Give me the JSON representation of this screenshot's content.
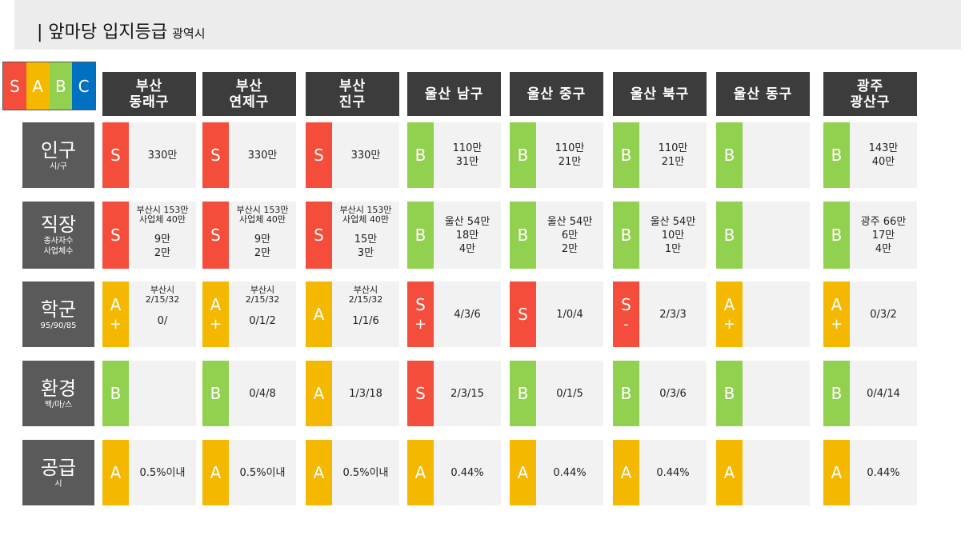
{
  "title": {
    "main": "| 앞마당 입지등급",
    "sub": "광역시"
  },
  "legend": [
    {
      "label": "S",
      "color": "#f44d3c"
    },
    {
      "label": "A",
      "color": "#f5b800"
    },
    {
      "label": "B",
      "color": "#92d050"
    },
    {
      "label": "C",
      "color": "#0070c0"
    }
  ],
  "grade_colors": {
    "S": "#f44d3c",
    "A": "#f5b800",
    "B": "#92d050"
  },
  "columns": [
    {
      "name": "부산\n동래구"
    },
    {
      "name": "부산\n연제구"
    },
    {
      "name": "부산\n진구"
    },
    {
      "name": "울산 남구"
    },
    {
      "name": "울산 중구"
    },
    {
      "name": "울산 북구"
    },
    {
      "name": "울산 동구"
    },
    {
      "name": "광주\n광산구"
    }
  ],
  "rows": [
    {
      "label": "인구",
      "sub": "시/구",
      "cells": [
        {
          "grade": "S",
          "lines": [
            "330만"
          ]
        },
        {
          "grade": "S",
          "lines": [
            "330만"
          ]
        },
        {
          "grade": "S",
          "lines": [
            "330만"
          ]
        },
        {
          "grade": "B",
          "lines": [
            "110만",
            "31만"
          ]
        },
        {
          "grade": "B",
          "lines": [
            "110만",
            "21만"
          ]
        },
        {
          "grade": "B",
          "lines": [
            "110만",
            "21만"
          ]
        },
        {
          "grade": "B",
          "lines": []
        },
        {
          "grade": "B",
          "lines": [
            "143만",
            "40만"
          ]
        }
      ]
    },
    {
      "label": "직장",
      "sub": "종사자수\n사업체수",
      "cells": [
        {
          "grade": "S",
          "small": [
            "부산시 153만",
            "사업체 40만"
          ],
          "lines": [
            "9만",
            "2만"
          ]
        },
        {
          "grade": "S",
          "small": [
            "부산시 153만",
            "사업체 40만"
          ],
          "lines": [
            "9만",
            "2만"
          ]
        },
        {
          "grade": "S",
          "small": [
            "부산시 153만",
            "사업체 40만"
          ],
          "lines": [
            "15만",
            "3만"
          ]
        },
        {
          "grade": "B",
          "lines": [
            "울산 54만",
            "18만",
            "4만"
          ]
        },
        {
          "grade": "B",
          "lines": [
            "울산 54만",
            "6만",
            "2만"
          ]
        },
        {
          "grade": "B",
          "lines": [
            "울산 54만",
            "10만",
            "1만"
          ]
        },
        {
          "grade": "B",
          "lines": []
        },
        {
          "grade": "B",
          "lines": [
            "광주 66만",
            "17만",
            "4만"
          ]
        }
      ]
    },
    {
      "label": "학군",
      "sub": "95/90/85",
      "cells": [
        {
          "grade": "A",
          "mod": "+",
          "small": [
            "부산시",
            "2/15/32"
          ],
          "lines": [
            "0/"
          ]
        },
        {
          "grade": "A",
          "mod": "+",
          "small": [
            "부산시",
            "2/15/32"
          ],
          "lines": [
            "0/1/2"
          ]
        },
        {
          "grade": "A",
          "small": [
            "부산시",
            "2/15/32"
          ],
          "lines": [
            "1/1/6"
          ]
        },
        {
          "grade": "S",
          "mod": "+",
          "lines": [
            "4/3/6"
          ]
        },
        {
          "grade": "S",
          "lines": [
            "1/0/4"
          ]
        },
        {
          "grade": "S",
          "mod": "-",
          "lines": [
            "2/3/3"
          ]
        },
        {
          "grade": "A",
          "mod": "+",
          "lines": []
        },
        {
          "grade": "A",
          "mod": "+",
          "lines": [
            "0/3/2"
          ]
        }
      ]
    },
    {
      "label": "환경",
      "sub": "백/마/스",
      "cells": [
        {
          "grade": "B",
          "lines": []
        },
        {
          "grade": "B",
          "lines": [
            "0/4/8"
          ]
        },
        {
          "grade": "A",
          "lines": [
            "1/3/18"
          ]
        },
        {
          "grade": "S",
          "lines": [
            "2/3/15"
          ]
        },
        {
          "grade": "B",
          "lines": [
            "0/1/5"
          ]
        },
        {
          "grade": "B",
          "lines": [
            "0/3/6"
          ]
        },
        {
          "grade": "B",
          "lines": []
        },
        {
          "grade": "B",
          "lines": [
            "0/4/14"
          ]
        }
      ]
    },
    {
      "label": "공급",
      "sub": "시",
      "cells": [
        {
          "grade": "A",
          "lines": [
            "0.5%이내"
          ]
        },
        {
          "grade": "A",
          "lines": [
            "0.5%이내"
          ]
        },
        {
          "grade": "A",
          "lines": [
            "0.5%이내"
          ]
        },
        {
          "grade": "A",
          "lines": [
            "0.44%"
          ]
        },
        {
          "grade": "A",
          "lines": [
            "0.44%"
          ]
        },
        {
          "grade": "A",
          "lines": [
            "0.44%"
          ]
        },
        {
          "grade": "A",
          "lines": []
        },
        {
          "grade": "A",
          "lines": [
            "0.44%"
          ]
        }
      ]
    }
  ]
}
